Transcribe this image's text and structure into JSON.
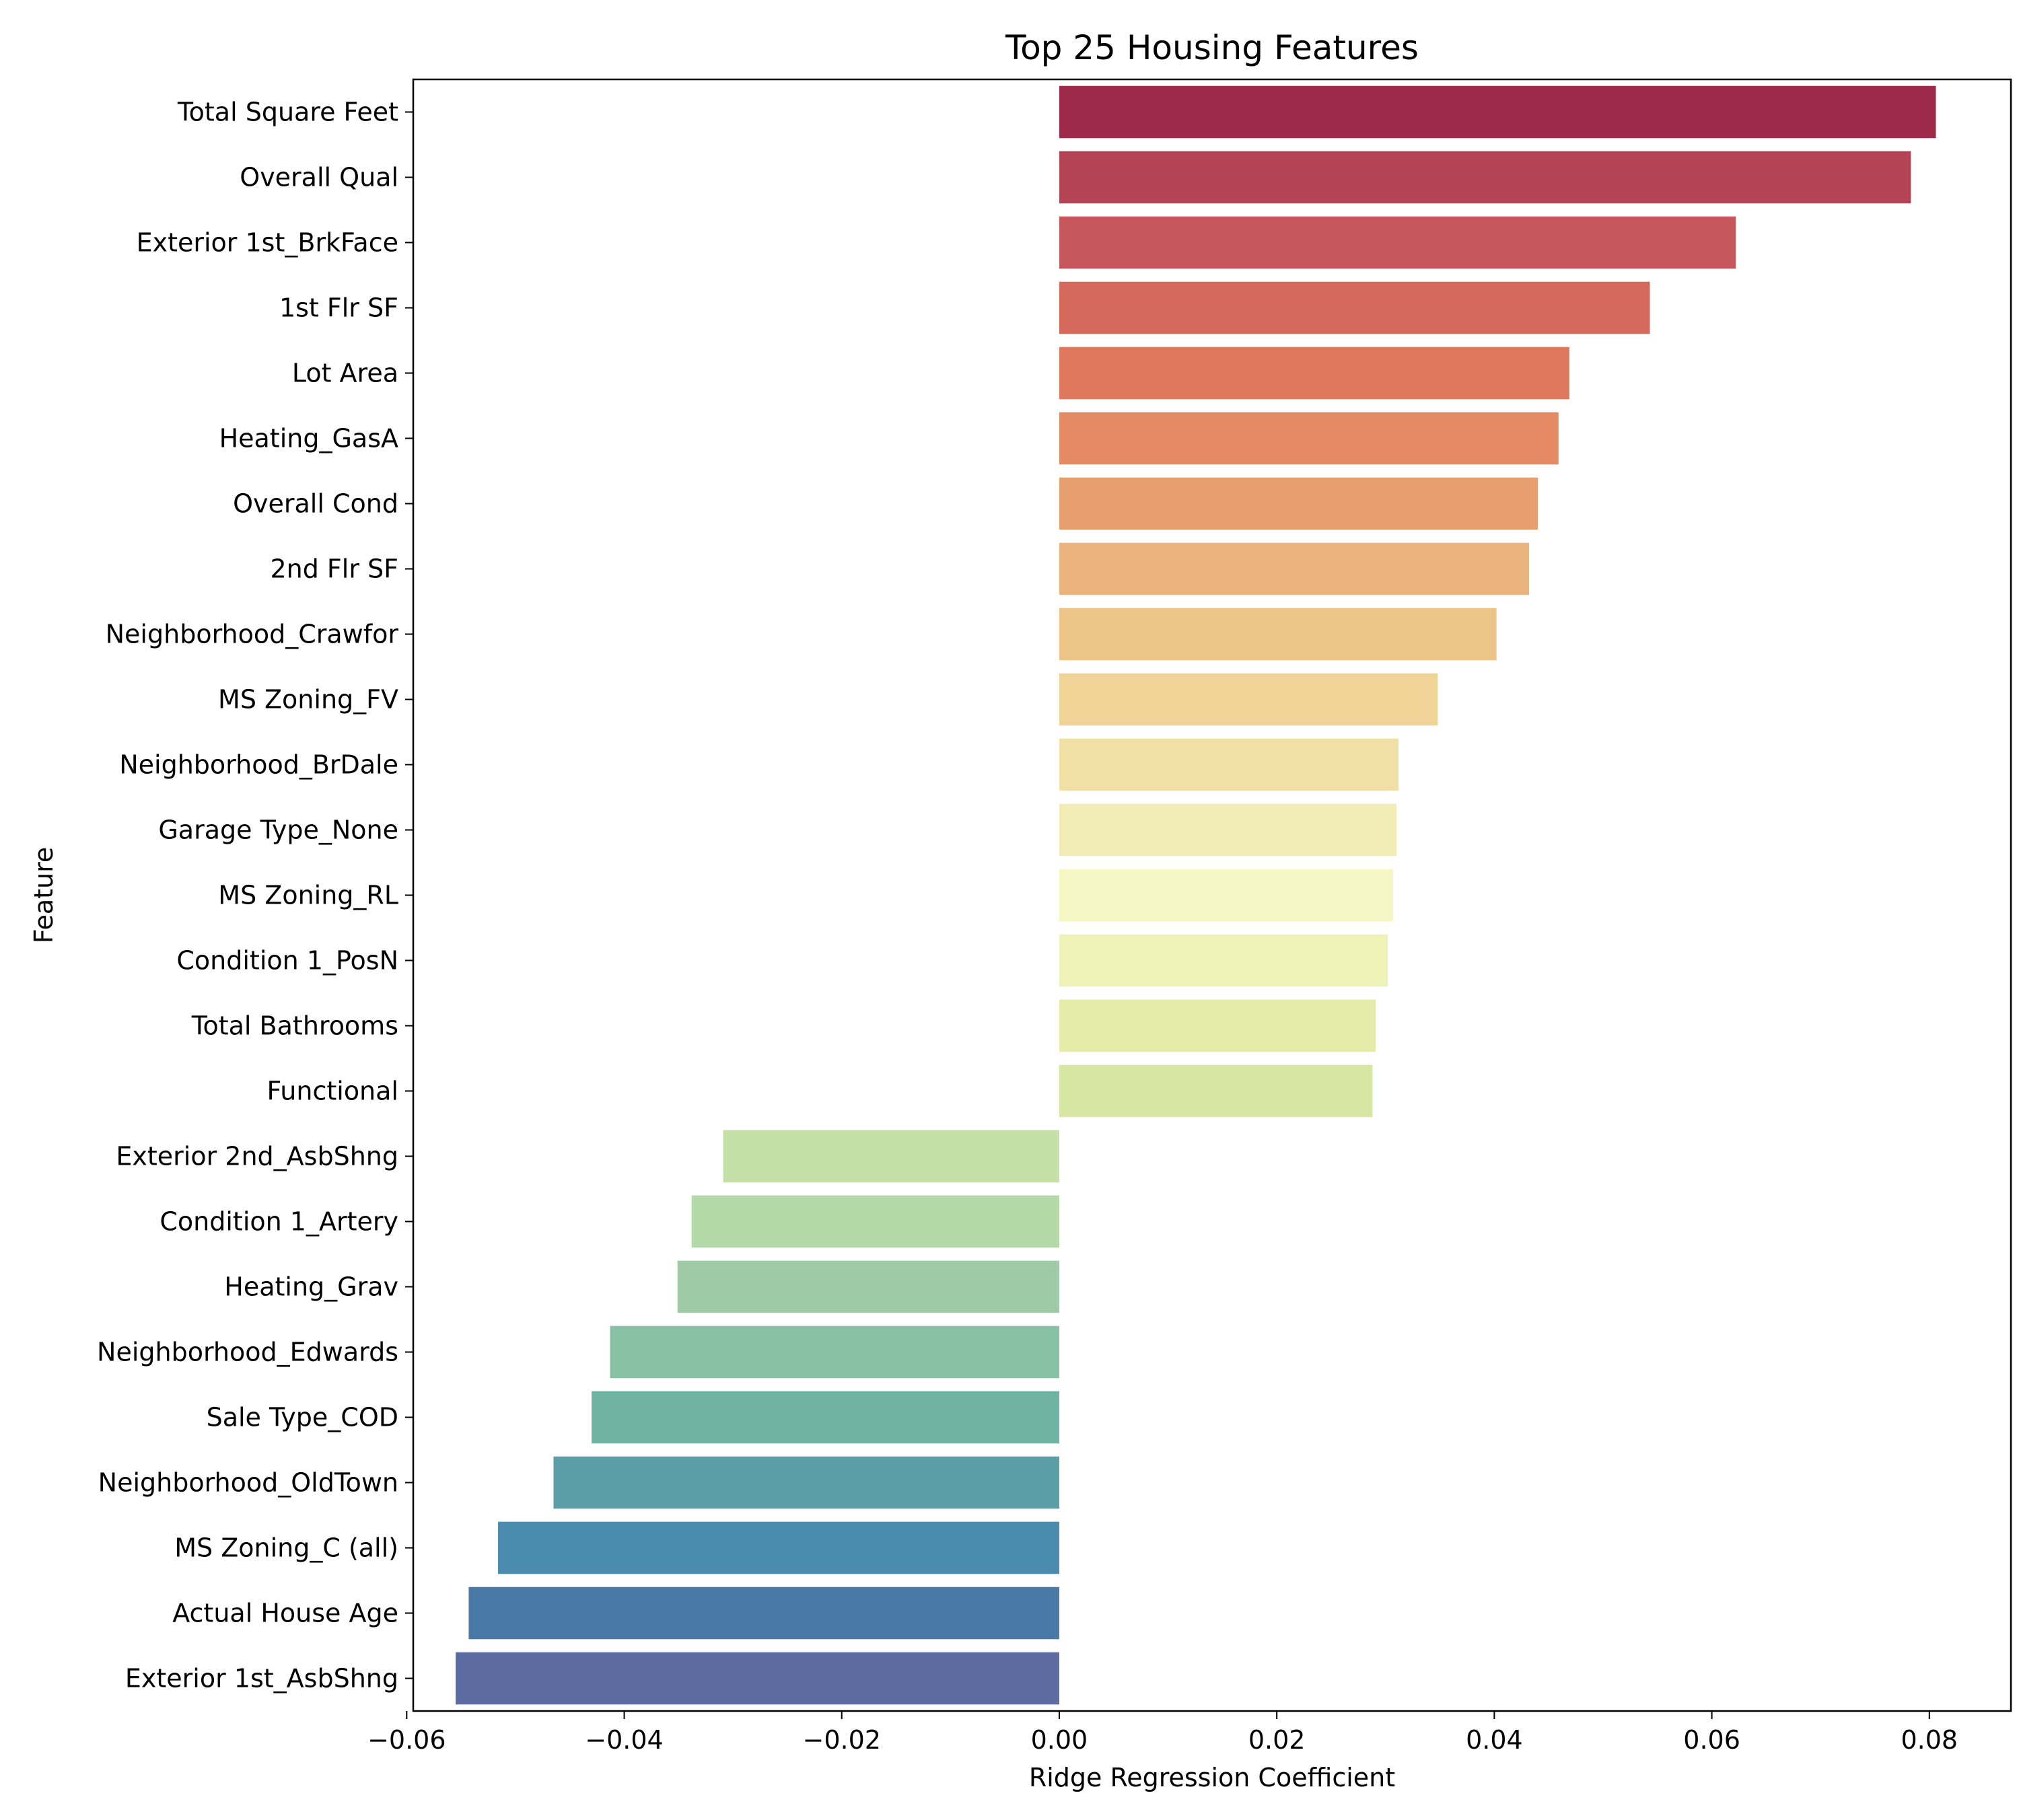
{
  "chart_data": {
    "type": "bar",
    "orientation": "horizontal",
    "title": "Top 25 Housing Features",
    "xlabel": "Ridge Regression Coefficient",
    "ylabel": "Feature",
    "xlim": [
      -0.0594,
      0.0875
    ],
    "xticks": [
      -0.06,
      -0.04,
      -0.02,
      0.0,
      0.02,
      0.04,
      0.06,
      0.08
    ],
    "xtick_labels": [
      "−0.06",
      "−0.04",
      "−0.02",
      "0.00",
      "0.02",
      "0.04",
      "0.06",
      "0.08"
    ],
    "grid": false,
    "legend": false,
    "colormap": "Spectral",
    "categories": [
      "Total Square Feet",
      "Overall Qual",
      "Exterior 1st_BrkFace",
      "1st Flr SF",
      "Lot Area",
      "Heating_GasA",
      "Overall Cond",
      "2nd Flr SF",
      "Neighborhood_Crawfor",
      "MS Zoning_FV",
      "Neighborhood_BrDale",
      "Garage Type_None",
      "MS Zoning_RL",
      "Condition 1_PosN",
      "Total Bathrooms",
      "Functional",
      "Exterior 2nd_AsbShng",
      "Condition 1_Artery",
      "Heating_Grav",
      "Neighborhood_Edwards",
      "Sale Type_COD",
      "Neighborhood_OldTown",
      "MS Zoning_C (all)",
      "Actual House Age",
      "Exterior 1st_AsbShng"
    ],
    "values": [
      0.0806,
      0.0783,
      0.0622,
      0.0543,
      0.0469,
      0.0459,
      0.044,
      0.0432,
      0.0402,
      0.0348,
      0.0312,
      0.031,
      0.0307,
      0.0302,
      0.0291,
      0.0288,
      -0.0309,
      -0.0338,
      -0.0351,
      -0.0413,
      -0.043,
      -0.0465,
      -0.0516,
      -0.0543,
      -0.0555
    ],
    "colors": [
      "#9e294b",
      "#b44355",
      "#c6565c",
      "#d4695c",
      "#de795e",
      "#e48a64",
      "#e89f6f",
      "#ebb37d",
      "#edc488",
      "#f0d396",
      "#f1e0a5",
      "#f2ecb6",
      "#f6f7c5",
      "#eef2b7",
      "#e3eca8",
      "#d7e6a3",
      "#c4e0a6",
      "#b3d9a7",
      "#9ecba6",
      "#88c1a4",
      "#6fb4a2",
      "#5c9ea7",
      "#4b8bae",
      "#4a78a7",
      "#5d6ba3"
    ]
  }
}
